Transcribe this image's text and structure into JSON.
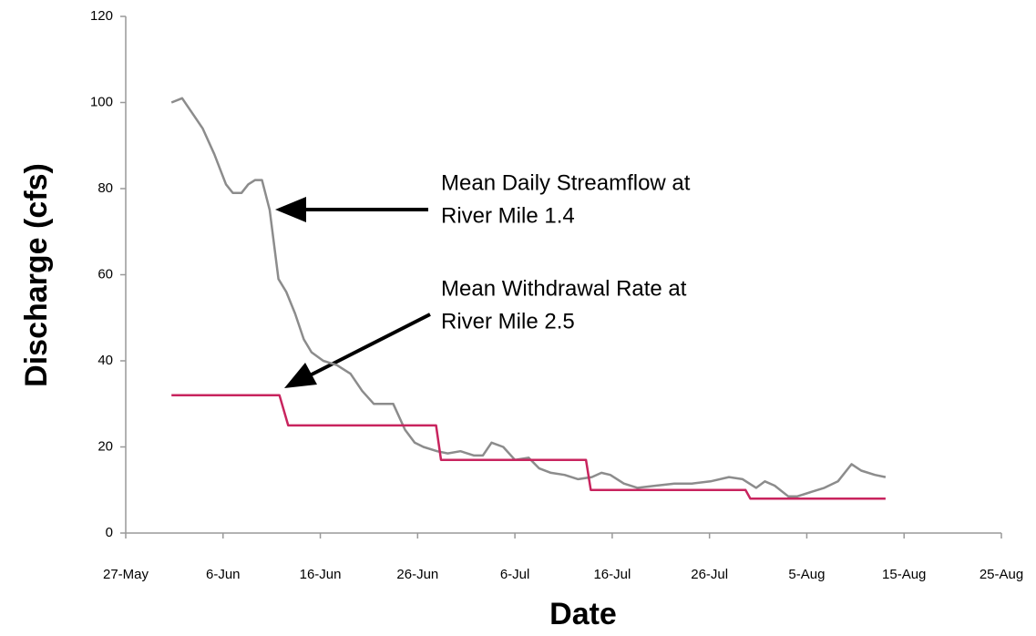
{
  "chart_data": {
    "type": "line",
    "x_label": "Date",
    "y_label": "Discharge (cfs)",
    "xlim": [
      0,
      90
    ],
    "xticks": [
      {
        "value": 0,
        "label": "27-May"
      },
      {
        "value": 10,
        "label": "6-Jun"
      },
      {
        "value": 20,
        "label": "16-Jun"
      },
      {
        "value": 30,
        "label": "26-Jun"
      },
      {
        "value": 40,
        "label": "6-Jul"
      },
      {
        "value": 50,
        "label": "16-Jul"
      },
      {
        "value": 60,
        "label": "26-Jul"
      },
      {
        "value": 70,
        "label": "5-Aug"
      },
      {
        "value": 80,
        "label": "15-Aug"
      },
      {
        "value": 90,
        "label": "25-Aug"
      }
    ],
    "ylim": [
      0,
      120
    ],
    "yticks": [
      0,
      20,
      40,
      60,
      80,
      100,
      120
    ],
    "grid": false,
    "annotations": [
      {
        "lines": [
          "Mean Daily Streamflow at",
          "River Mile 1.4"
        ]
      },
      {
        "lines": [
          "Mean Withdrawal Rate at",
          "River Mile 2.5"
        ]
      }
    ],
    "series": [
      {
        "color": "#8c8c8c",
        "x": [
          4.7,
          5.8,
          6.7,
          7.9,
          9.1,
          10.3,
          11,
          11.9,
          12.6,
          13.3,
          14,
          14.8,
          15.7,
          16.5,
          17.4,
          18.3,
          19.1,
          20.3,
          21.7,
          23.1,
          24.3,
          25.5,
          26.4,
          27.5,
          28.7,
          29.7,
          30.6,
          32,
          33.1,
          34.4,
          35.8,
          36.7,
          37.6,
          38.8,
          40,
          41.4,
          42.5,
          43.7,
          45.1,
          46.5,
          47.9,
          48.9,
          49.8,
          51.2,
          52.6,
          54.5,
          56.4,
          58.2,
          60.1,
          62,
          63.4,
          64.8,
          65.7,
          66.7,
          68.1,
          69,
          70.4,
          71.8,
          73.2,
          74.6,
          75.6,
          77,
          78.1
        ],
        "values": [
          100,
          101,
          98,
          94,
          88,
          81,
          79,
          79,
          81,
          82,
          82,
          75,
          59,
          56,
          51,
          45,
          42,
          40,
          39,
          37,
          33,
          30,
          30,
          30,
          24,
          21,
          20,
          19,
          18.5,
          19,
          18,
          18,
          21,
          20,
          17,
          17.5,
          15,
          14,
          13.5,
          12.5,
          13,
          14,
          13.5,
          11.5,
          10.5,
          11,
          11.5,
          11.5,
          12,
          13,
          12.5,
          10.5,
          12,
          11,
          8.5,
          8.5,
          9.5,
          10.5,
          12,
          16,
          14.5,
          13.5,
          13
        ]
      },
      {
        "color": "#c8245e",
        "x": [
          4.7,
          15.8,
          16.7,
          31.9,
          32.4,
          47.3,
          47.8,
          63.7,
          64.2,
          78.1
        ],
        "values": [
          32,
          32,
          25,
          25,
          17,
          17,
          10,
          10,
          8,
          8
        ]
      }
    ]
  }
}
